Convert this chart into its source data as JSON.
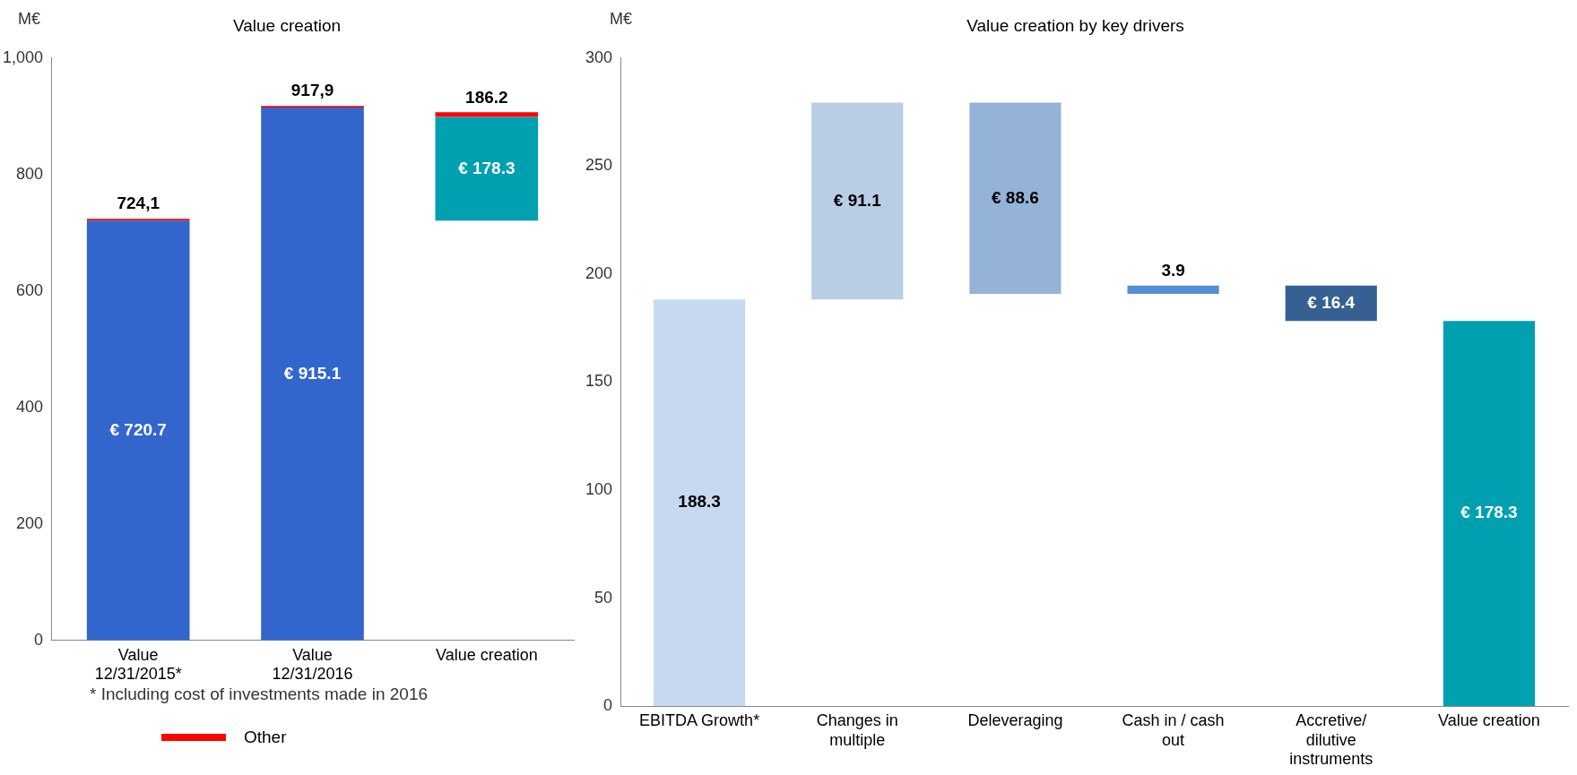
{
  "chart_data": [
    {
      "type": "bar",
      "title": "Value creation",
      "ylabel": "M€",
      "stacked": true,
      "categories": [
        "Value 12/31/2015*",
        "Value 12/31/2016",
        "Value creation"
      ],
      "series": [
        {
          "base": [
            0,
            0,
            720.7
          ],
          "colors": [
            "#3366cc",
            "#3366cc",
            "#00a0b0"
          ],
          "values": [
            720.7,
            915.1,
            178.3
          ],
          "value_labels": [
            "€ 720.7",
            "€ 915.1",
            "€ 178.3"
          ]
        },
        {
          "name": "Other",
          "color": "#ff0000",
          "values": [
            3.4,
            2.8,
            7.9
          ]
        }
      ],
      "totals": [
        "724,1",
        "917,9",
        "186.2"
      ],
      "ylim": [
        0,
        1000
      ],
      "yticks": [
        0,
        200,
        400,
        600,
        800,
        {
          "value": 1000,
          "label": "1,000"
        }
      ],
      "grid": false,
      "legend": "bottom",
      "annotations": [
        "* Including cost of investments made in 2016"
      ]
    },
    {
      "type": "bar",
      "title": "Value creation by key drivers",
      "ylabel": "M€",
      "categories": [
        "EBITDA Growth*",
        "Changes in multiple",
        "Deleveraging",
        "Cash in / cash out",
        "Accretive/ dilutive instruments",
        "Value creation"
      ],
      "series": [
        {
          "base": [
            0,
            188.3,
            190.8,
            190.8,
            178.3,
            0
          ],
          "colors": [
            "#c6d9f1",
            "#b9cde5",
            "#95b3d7",
            "#558ed5",
            "#376092",
            "#00a0b0"
          ],
          "values": [
            188.3,
            91.1,
            88.6,
            3.9,
            16.4,
            178.3
          ],
          "value_labels": [
            "188.3",
            "€ 91.1",
            "€ 88.6",
            "3.9",
            "€ 16.4",
            "€ 178.3"
          ]
        }
      ],
      "ylim": [
        0,
        300
      ],
      "yticks": [
        0,
        50,
        100,
        150,
        200,
        250,
        300
      ],
      "grid": false
    }
  ]
}
